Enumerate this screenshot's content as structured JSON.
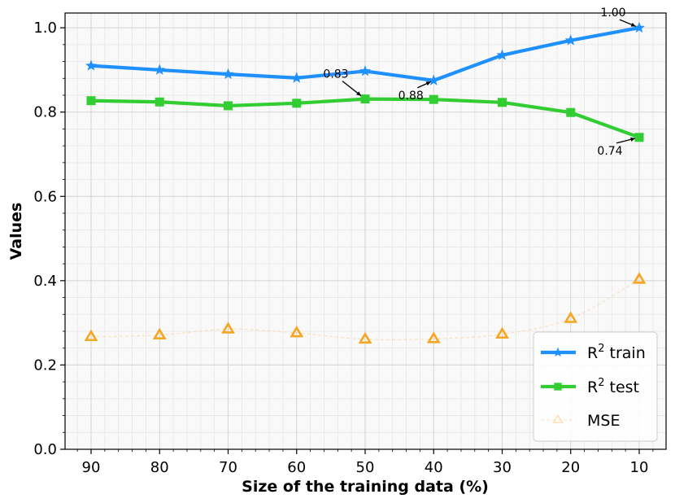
{
  "chart_data": {
    "type": "line",
    "title": "",
    "xlabel": "Size of the training data (%)",
    "ylabel": "Values",
    "categories": [
      "90",
      "80",
      "70",
      "60",
      "50",
      "40",
      "30",
      "20",
      "10"
    ],
    "ylim": [
      0.0,
      1.035
    ],
    "y_ticks": [
      "0.0",
      "0.2",
      "0.4",
      "0.6",
      "0.8",
      "1.0"
    ],
    "grid": true,
    "legend_position": "bottom-right",
    "series": [
      {
        "name": "R² train",
        "name_base": "R",
        "name_sup": "2",
        "name_rest": " train",
        "color": "#1e90ff",
        "marker": "star",
        "values": [
          0.91,
          0.9,
          0.89,
          0.881,
          0.897,
          0.875,
          0.935,
          0.97,
          1.0
        ]
      },
      {
        "name": "R² test",
        "name_base": "R",
        "name_sup": "2",
        "name_rest": " test",
        "color": "#32cd32",
        "marker": "square",
        "values": [
          0.827,
          0.824,
          0.815,
          0.821,
          0.831,
          0.83,
          0.823,
          0.799,
          0.74
        ]
      },
      {
        "name": "MSE",
        "name_base": "MSE",
        "name_sup": "",
        "name_rest": "",
        "color": "#f5a623",
        "marker": "triangle",
        "values": [
          0.267,
          0.271,
          0.285,
          0.276,
          0.261,
          0.262,
          0.273,
          0.31,
          0.403
        ]
      }
    ],
    "annotations": [
      {
        "text": "1.00",
        "series": 0,
        "index": 8
      },
      {
        "text": "0.83",
        "series": 1,
        "index": 4
      },
      {
        "text": "0.88",
        "series": 0,
        "index": 5
      },
      {
        "text": "0.74",
        "series": 1,
        "index": 8
      }
    ]
  }
}
